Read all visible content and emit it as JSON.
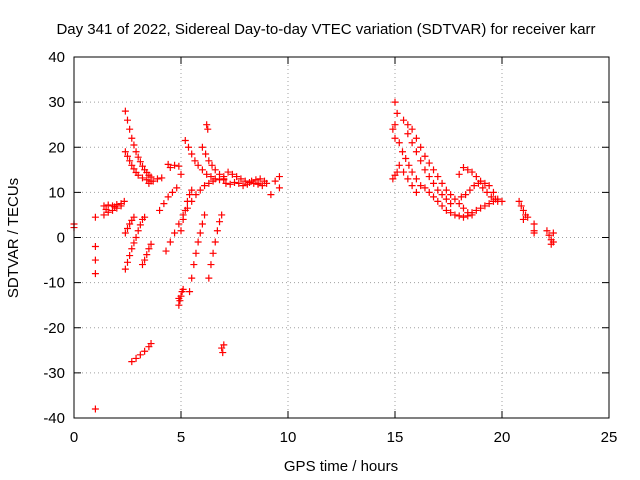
{
  "chart_data": {
    "type": "scatter",
    "title": "Day 341 of 2022, Sidereal Day-to-day VTEC variation (SDTVAR) for receiver karr",
    "xlabel": "GPS time / hours",
    "ylabel": "SDTVAR / TECUs",
    "xlim": [
      0,
      25
    ],
    "ylim": [
      -40,
      40
    ],
    "x_ticks": [
      0,
      5,
      10,
      15,
      20,
      25
    ],
    "y_ticks": [
      -40,
      -30,
      -20,
      -10,
      0,
      10,
      20,
      30,
      40
    ],
    "x_tick_labels": [
      "0",
      "5",
      "10",
      "15",
      "20",
      "25"
    ],
    "y_tick_labels": [
      "-40",
      "-30",
      "-20",
      "-10",
      "0",
      "10",
      "20",
      "30",
      "40"
    ],
    "grid": true,
    "marker": "+",
    "marker_color": "#ff0000",
    "series": [
      {
        "name": "SDTVAR",
        "points": [
          [
            0.0,
            3.0
          ],
          [
            0.0,
            2.2
          ],
          [
            1.0,
            4.5
          ],
          [
            1.0,
            -2.0
          ],
          [
            1.0,
            -5.0
          ],
          [
            1.0,
            -8.0
          ],
          [
            1.0,
            -38.0
          ],
          [
            1.4,
            7.0
          ],
          [
            1.6,
            7.2
          ],
          [
            1.8,
            7.0
          ],
          [
            2.0,
            7.3
          ],
          [
            2.2,
            7.5
          ],
          [
            2.35,
            8.0
          ],
          [
            1.4,
            5.0
          ],
          [
            1.6,
            5.6
          ],
          [
            1.8,
            6.0
          ],
          [
            2.0,
            6.5
          ],
          [
            2.2,
            7.0
          ],
          [
            1.5,
            6.2
          ],
          [
            1.9,
            6.8
          ],
          [
            2.4,
            28.0
          ],
          [
            2.5,
            26.0
          ],
          [
            2.6,
            24.0
          ],
          [
            2.7,
            22.0
          ],
          [
            2.8,
            20.5
          ],
          [
            2.9,
            19.0
          ],
          [
            3.0,
            17.8
          ],
          [
            3.1,
            16.8
          ],
          [
            3.2,
            15.8
          ],
          [
            3.3,
            15.0
          ],
          [
            3.4,
            14.4
          ],
          [
            3.5,
            13.8
          ],
          [
            3.6,
            13.4
          ],
          [
            2.4,
            19.0
          ],
          [
            2.5,
            18.0
          ],
          [
            2.6,
            17.0
          ],
          [
            2.7,
            16.0
          ],
          [
            2.8,
            15.2
          ],
          [
            2.9,
            14.4
          ],
          [
            3.0,
            13.8
          ],
          [
            3.2,
            13.2
          ],
          [
            3.4,
            12.8
          ],
          [
            3.6,
            12.5
          ],
          [
            2.4,
            -7.0
          ],
          [
            2.5,
            -5.5
          ],
          [
            2.6,
            -4.0
          ],
          [
            2.7,
            -2.5
          ],
          [
            2.8,
            -1.2
          ],
          [
            2.9,
            0.0
          ],
          [
            3.0,
            1.5
          ],
          [
            3.1,
            2.8
          ],
          [
            3.2,
            4.0
          ],
          [
            3.3,
            4.5
          ],
          [
            2.4,
            1.0
          ],
          [
            2.5,
            2.0
          ],
          [
            2.6,
            3.0
          ],
          [
            2.7,
            3.8
          ],
          [
            2.8,
            4.5
          ],
          [
            2.7,
            -27.5
          ],
          [
            2.9,
            -26.8
          ],
          [
            3.1,
            -26.0
          ],
          [
            3.3,
            -25.2
          ],
          [
            3.5,
            -24.2
          ],
          [
            3.6,
            -23.5
          ],
          [
            3.2,
            -6.0
          ],
          [
            3.3,
            -5.0
          ],
          [
            3.4,
            -3.8
          ],
          [
            3.5,
            -2.5
          ],
          [
            3.6,
            -1.5
          ],
          [
            3.5,
            12.0
          ],
          [
            3.7,
            12.5
          ],
          [
            3.9,
            13.0
          ],
          [
            4.1,
            13.2
          ],
          [
            4.0,
            6.0
          ],
          [
            4.2,
            7.5
          ],
          [
            4.4,
            9.0
          ],
          [
            4.6,
            10.0
          ],
          [
            4.8,
            11.0
          ],
          [
            4.4,
            16.2
          ],
          [
            4.5,
            15.5
          ],
          [
            4.7,
            16.0
          ],
          [
            4.9,
            15.8
          ],
          [
            5.0,
            14.0
          ],
          [
            4.3,
            -3.0
          ],
          [
            4.5,
            -1.0
          ],
          [
            4.7,
            1.0
          ],
          [
            4.9,
            3.0
          ],
          [
            5.1,
            5.0
          ],
          [
            5.3,
            6.5
          ],
          [
            4.9,
            -15.0
          ],
          [
            4.95,
            -14.0
          ],
          [
            5.0,
            -13.0
          ],
          [
            5.05,
            -12.0
          ],
          [
            5.1,
            -11.5
          ],
          [
            4.9,
            -13.5
          ],
          [
            5.0,
            1.5
          ],
          [
            5.1,
            4.0
          ],
          [
            5.2,
            6.0
          ],
          [
            5.3,
            8.0
          ],
          [
            5.4,
            9.5
          ],
          [
            5.5,
            10.5
          ],
          [
            5.2,
            21.5
          ],
          [
            5.35,
            20.0
          ],
          [
            5.5,
            18.5
          ],
          [
            5.65,
            17.0
          ],
          [
            5.8,
            16.0
          ],
          [
            6.0,
            15.0
          ],
          [
            6.2,
            14.0
          ],
          [
            6.4,
            13.5
          ],
          [
            6.6,
            13.0
          ],
          [
            6.8,
            12.8
          ],
          [
            7.0,
            12.8
          ],
          [
            6.0,
            20.0
          ],
          [
            6.15,
            18.5
          ],
          [
            6.3,
            17.0
          ],
          [
            6.45,
            16.0
          ],
          [
            6.6,
            15.0
          ],
          [
            6.8,
            14.0
          ],
          [
            7.0,
            13.5
          ],
          [
            5.4,
            -12.0
          ],
          [
            5.5,
            -9.0
          ],
          [
            5.6,
            -6.0
          ],
          [
            5.7,
            -3.5
          ],
          [
            5.8,
            -1.0
          ],
          [
            5.9,
            1.0
          ],
          [
            6.0,
            3.0
          ],
          [
            6.1,
            5.0
          ],
          [
            6.3,
            -9.0
          ],
          [
            6.4,
            -6.0
          ],
          [
            6.5,
            -3.5
          ],
          [
            6.6,
            -1.0
          ],
          [
            6.7,
            1.5
          ],
          [
            6.8,
            3.5
          ],
          [
            6.9,
            5.0
          ],
          [
            5.5,
            8.0
          ],
          [
            5.7,
            9.5
          ],
          [
            5.9,
            10.5
          ],
          [
            6.1,
            11.5
          ],
          [
            6.3,
            12.0
          ],
          [
            6.5,
            12.5
          ],
          [
            6.2,
            25.0
          ],
          [
            6.25,
            24.0
          ],
          [
            6.9,
            -24.5
          ],
          [
            6.95,
            -25.5
          ],
          [
            7.0,
            -23.8
          ],
          [
            7.0,
            13.0
          ],
          [
            7.2,
            14.5
          ],
          [
            7.4,
            14.0
          ],
          [
            7.6,
            13.5
          ],
          [
            7.8,
            13.0
          ],
          [
            8.0,
            12.5
          ],
          [
            8.2,
            12.2
          ],
          [
            8.4,
            12.0
          ],
          [
            8.6,
            11.8
          ],
          [
            7.1,
            12.0
          ],
          [
            7.3,
            11.8
          ],
          [
            7.5,
            12.2
          ],
          [
            7.7,
            12.0
          ],
          [
            7.9,
            11.5
          ],
          [
            8.1,
            11.8
          ],
          [
            8.3,
            12.5
          ],
          [
            8.5,
            12.8
          ],
          [
            8.7,
            13.0
          ],
          [
            8.9,
            12.5
          ],
          [
            8.6,
            12.0
          ],
          [
            8.8,
            11.5
          ],
          [
            9.0,
            12.0
          ],
          [
            9.2,
            9.5
          ],
          [
            9.4,
            12.5
          ],
          [
            9.6,
            13.5
          ],
          [
            9.6,
            11.0
          ],
          [
            14.9,
            13.0
          ],
          [
            15.0,
            13.8
          ],
          [
            15.1,
            14.5
          ],
          [
            14.9,
            24.0
          ],
          [
            15.0,
            25.0
          ],
          [
            15.0,
            22.0
          ],
          [
            15.0,
            30.0
          ],
          [
            15.1,
            27.5
          ],
          [
            15.2,
            21.0
          ],
          [
            15.35,
            19.0
          ],
          [
            15.5,
            17.5
          ],
          [
            15.65,
            16.0
          ],
          [
            15.8,
            14.5
          ],
          [
            16.0,
            13.0
          ],
          [
            16.2,
            11.5
          ],
          [
            15.4,
            26.0
          ],
          [
            15.6,
            25.0
          ],
          [
            15.8,
            24.0
          ],
          [
            16.0,
            22.0
          ],
          [
            16.2,
            20.0
          ],
          [
            16.4,
            18.0
          ],
          [
            16.6,
            16.5
          ],
          [
            16.8,
            15.0
          ],
          [
            17.0,
            13.5
          ],
          [
            17.2,
            12.0
          ],
          [
            17.4,
            10.5
          ],
          [
            17.6,
            9.5
          ],
          [
            17.8,
            8.5
          ],
          [
            15.6,
            23.0
          ],
          [
            15.8,
            21.0
          ],
          [
            16.0,
            19.0
          ],
          [
            16.2,
            17.0
          ],
          [
            16.4,
            15.0
          ],
          [
            16.6,
            13.5
          ],
          [
            16.8,
            12.0
          ],
          [
            17.0,
            10.5
          ],
          [
            17.2,
            9.5
          ],
          [
            17.4,
            8.5
          ],
          [
            17.6,
            7.5
          ],
          [
            15.2,
            16.0
          ],
          [
            15.4,
            14.5
          ],
          [
            15.6,
            13.0
          ],
          [
            15.8,
            11.5
          ],
          [
            16.0,
            10.0
          ],
          [
            16.4,
            11.0
          ],
          [
            16.6,
            10.0
          ],
          [
            16.8,
            9.0
          ],
          [
            17.0,
            8.0
          ],
          [
            17.2,
            7.0
          ],
          [
            17.4,
            6.0
          ],
          [
            17.6,
            5.5
          ],
          [
            17.8,
            5.0
          ],
          [
            18.0,
            4.8
          ],
          [
            18.0,
            14.0
          ],
          [
            18.2,
            15.5
          ],
          [
            18.4,
            15.0
          ],
          [
            18.6,
            14.5
          ],
          [
            18.8,
            13.5
          ],
          [
            19.0,
            12.5
          ],
          [
            19.2,
            12.0
          ],
          [
            19.4,
            11.5
          ],
          [
            19.6,
            10.0
          ],
          [
            19.8,
            8.5
          ],
          [
            20.0,
            8.0
          ],
          [
            18.0,
            7.5
          ],
          [
            18.2,
            6.5
          ],
          [
            18.4,
            5.5
          ],
          [
            18.6,
            5.5
          ],
          [
            18.8,
            6.0
          ],
          [
            19.0,
            6.5
          ],
          [
            19.2,
            7.0
          ],
          [
            19.4,
            7.5
          ],
          [
            19.6,
            8.0
          ],
          [
            19.8,
            8.0
          ],
          [
            18.1,
            9.0
          ],
          [
            18.3,
            9.5
          ],
          [
            18.5,
            10.5
          ],
          [
            18.7,
            11.5
          ],
          [
            18.9,
            12.0
          ],
          [
            19.1,
            11.0
          ],
          [
            19.3,
            10.0
          ],
          [
            19.5,
            9.0
          ],
          [
            19.7,
            8.5
          ],
          [
            18.2,
            4.5
          ],
          [
            18.4,
            4.8
          ],
          [
            18.6,
            5.0
          ],
          [
            20.8,
            8.0
          ],
          [
            20.9,
            7.0
          ],
          [
            21.0,
            6.0
          ],
          [
            21.1,
            5.0
          ],
          [
            21.0,
            4.0
          ],
          [
            21.2,
            4.5
          ],
          [
            21.5,
            3.0
          ],
          [
            21.5,
            1.5
          ],
          [
            21.5,
            1.0
          ],
          [
            22.1,
            1.5
          ],
          [
            22.2,
            0.5
          ],
          [
            22.3,
            -0.5
          ],
          [
            22.3,
            -1.5
          ],
          [
            22.4,
            1.0
          ],
          [
            22.4,
            -1.0
          ]
        ]
      }
    ]
  }
}
